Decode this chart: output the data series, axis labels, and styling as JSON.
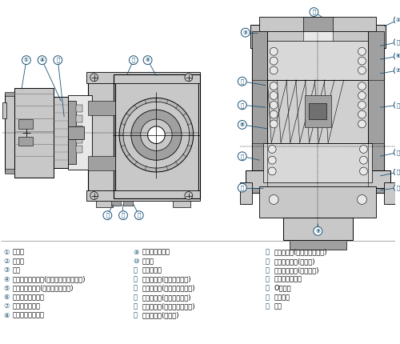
{
  "bg_color": "#ffffff",
  "black": "#000000",
  "blue": "#1a5276",
  "lgray": "#c8c8c8",
  "mgray": "#a0a0a0",
  "dgray": "#707070",
  "legend_col1": [
    [
      "①",
      "モータ"
    ],
    [
      "②",
      "ケース"
    ],
    [
      "③",
      "フタ"
    ],
    [
      "④",
      "モートルビニオン(ハイポイドビニオン)"
    ],
    [
      "⑤",
      "第一段ホイール(ハイポイドギヤ)"
    ],
    [
      "⑥",
      "第二軸付ビニオン"
    ],
    [
      "⑦",
      "第二段ホイール"
    ],
    [
      "⑧",
      "第三軸付ビニオン"
    ]
  ],
  "legend_col2": [
    [
      "⑨",
      "第三段ホイール"
    ],
    [
      "⑩",
      "出力軸"
    ],
    [
      "⑪",
      "中空出力軸"
    ],
    [
      "⑫",
      "ベアリング(第二軸フタ側)"
    ],
    [
      "⑬",
      "ベアリング(第二軸ケース側)"
    ],
    [
      "⑭",
      "ベアリング(第三軸フタ側)"
    ],
    [
      "⑮",
      "ベアリング(第三軸ケース側)"
    ],
    [
      "⑯",
      "ベアリング(出力軸)"
    ]
  ],
  "legend_col3": [
    [
      "Ⓑ",
      "ベアリング(モータ軸負荷側)"
    ],
    [
      "Ⓒ",
      "オイルシール(出力軸)"
    ],
    [
      "Ⓓ",
      "オイルシール(モータ軸)"
    ],
    [
      "Ⓔ",
      "シールキャップ"
    ],
    [
      "Ⓕ",
      "Oリング"
    ],
    [
      "Ⓖ",
      "フィルタ"
    ],
    [
      "Ⓗ",
      "シム"
    ]
  ]
}
